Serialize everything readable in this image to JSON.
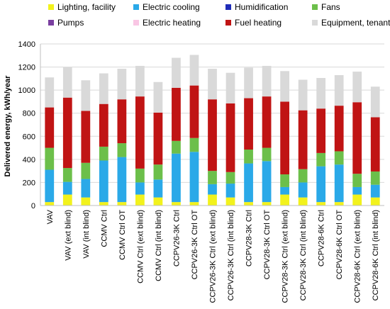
{
  "chart_data": {
    "type": "bar",
    "stacked": true,
    "ylabel": "Delivered energy, kWh/year",
    "ylim": [
      0,
      1400
    ],
    "yticks": [
      0,
      200,
      400,
      600,
      800,
      1000,
      1200,
      1400
    ],
    "grid": true,
    "legend_position": "top",
    "categories": [
      "VAV",
      "VAV (ext blind)",
      "VAV (int blind)",
      "CCMV Ctrl",
      "CCMV Ctrl OT",
      "CCMV Ctrl (ext blind)",
      "CCMV Ctrl (int blind)",
      "CCPV26-3K Ctrl",
      "CCPV26-3K Ctrl OT",
      "CCPV26-3K Ctrl (ext blind)",
      "CCPV26-3K Ctrl (int blind)",
      "CCPV28-3K Ctrl",
      "CCPV28-3K Ctrl OT",
      "CCPV28-3K Ctrl (ext blind)",
      "CCPV28-3K Ctrl (int blind)",
      "CCPV28-6K Ctrl",
      "CCPV28-6K Ctrl OT",
      "CCPV28-6K Ctrl (ext blind)",
      "CCPV28-6K Ctrl (int blind)"
    ],
    "series": [
      {
        "name": "Lighting, facility",
        "color": "#f2f21c",
        "values": [
          30,
          95,
          70,
          30,
          30,
          95,
          70,
          30,
          30,
          95,
          70,
          30,
          30,
          95,
          70,
          30,
          30,
          95,
          70
        ]
      },
      {
        "name": "Electric cooling",
        "color": "#2aa9e8",
        "values": [
          280,
          110,
          160,
          360,
          390,
          105,
          155,
          420,
          435,
          90,
          120,
          335,
          355,
          65,
          130,
          310,
          325,
          65,
          110
        ]
      },
      {
        "name": "Humidification",
        "color": "#1f2cb8",
        "values": [
          0,
          0,
          0,
          0,
          0,
          0,
          0,
          0,
          0,
          0,
          0,
          0,
          0,
          0,
          0,
          0,
          0,
          0,
          0
        ]
      },
      {
        "name": "Fans",
        "color": "#6cbf4a",
        "values": [
          190,
          120,
          140,
          120,
          120,
          120,
          130,
          110,
          120,
          115,
          100,
          120,
          115,
          110,
          115,
          115,
          115,
          115,
          115
        ]
      },
      {
        "name": "Pumps",
        "color": "#7a3fa0",
        "values": [
          0,
          0,
          0,
          0,
          0,
          0,
          0,
          0,
          0,
          0,
          0,
          0,
          0,
          0,
          0,
          0,
          0,
          0,
          0
        ]
      },
      {
        "name": "Electric heating",
        "color": "#f9c6e4",
        "values": [
          0,
          0,
          0,
          0,
          0,
          0,
          0,
          0,
          0,
          0,
          0,
          0,
          0,
          0,
          0,
          0,
          0,
          0,
          0
        ]
      },
      {
        "name": "Fuel heating",
        "color": "#c01414",
        "values": [
          350,
          610,
          450,
          370,
          380,
          625,
          450,
          460,
          455,
          620,
          595,
          445,
          445,
          630,
          510,
          385,
          395,
          620,
          470
        ]
      },
      {
        "name": "Equipment, tenant",
        "color": "#d9d9d9",
        "values": [
          260,
          265,
          265,
          265,
          265,
          265,
          265,
          260,
          265,
          265,
          265,
          265,
          265,
          265,
          265,
          265,
          265,
          265,
          265
        ]
      }
    ]
  }
}
